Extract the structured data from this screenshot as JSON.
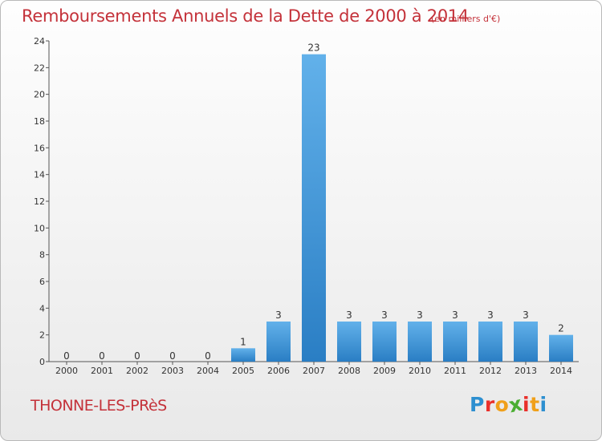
{
  "header": {
    "title": "Remboursements Annuels de la Dette de 2000 à 2014",
    "unit": "(en milliers d'€)"
  },
  "footer": {
    "city": "THONNE-LES-PRèS",
    "logo_letters": [
      "P",
      "r",
      "o",
      "x",
      "i",
      "t",
      "i"
    ],
    "logo_colors": [
      "#2d8fd0",
      "#e9302b",
      "#f0a01a",
      "#4bae32",
      "#e9302b",
      "#f0a01a",
      "#2d8fd0"
    ]
  },
  "chart_data": {
    "type": "bar",
    "categories": [
      "2000",
      "2001",
      "2002",
      "2003",
      "2004",
      "2005",
      "2006",
      "2007",
      "2008",
      "2009",
      "2010",
      "2011",
      "2012",
      "2013",
      "2014"
    ],
    "values": [
      0,
      0,
      0,
      0,
      0,
      1,
      3,
      23,
      3,
      3,
      3,
      3,
      3,
      3,
      2
    ],
    "title": "Remboursements Annuels de la Dette de 2000 à 2014",
    "xlabel": "",
    "ylabel": "",
    "ylim": [
      0,
      24
    ],
    "yticks": [
      0,
      2,
      4,
      6,
      8,
      10,
      12,
      14,
      16,
      18,
      20,
      22,
      24
    ],
    "grid": false,
    "bar_color": "#3f93d5"
  }
}
